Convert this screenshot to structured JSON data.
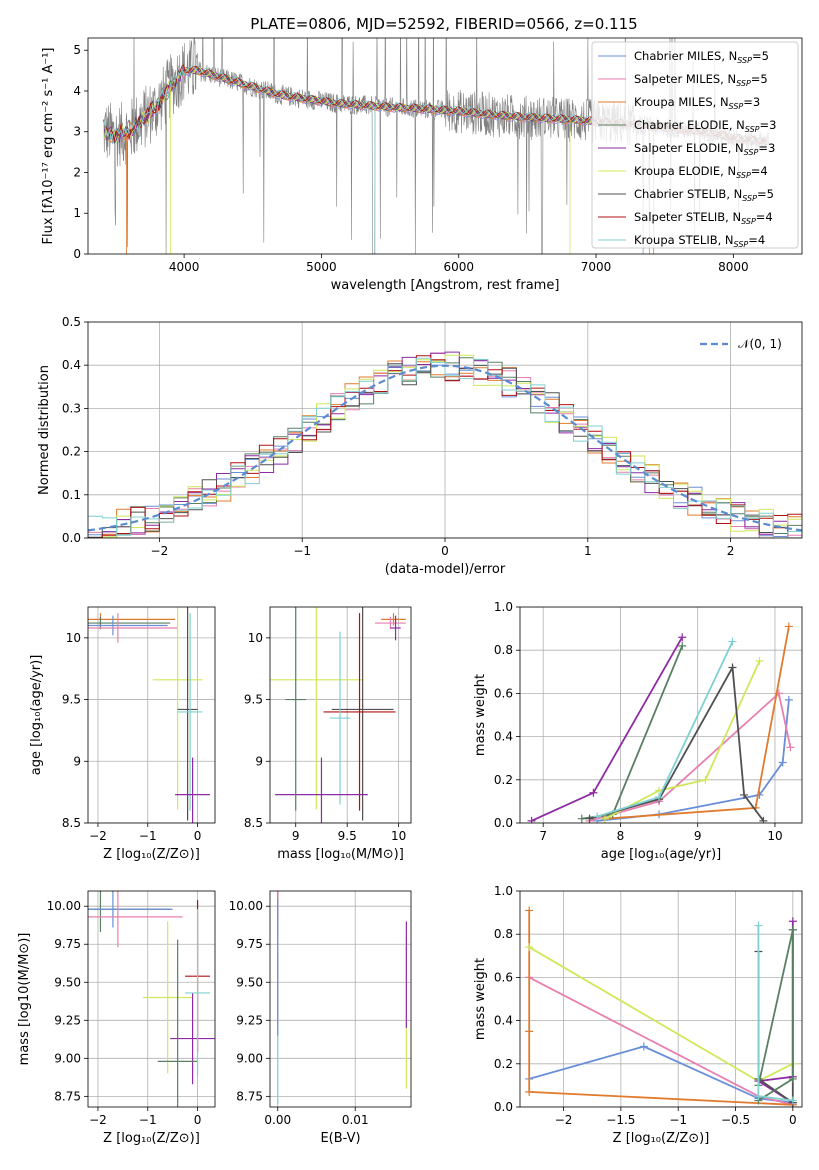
{
  "figure": {
    "title": "PLATE=0806, MJD=52592, FIBERID=0566, z=0.115"
  },
  "colors": {
    "C1": "#6a8fd6",
    "C2": "#e87fae",
    "C3": "#e07b2d",
    "C4": "#5a7f62",
    "C5": "#8f2aa5",
    "C6": "#cfe85a",
    "C7": "#505050",
    "C8": "#b01010",
    "C9": "#7fd0d0",
    "spec": "#808080"
  },
  "chart_data": [
    {
      "id": "spectrum",
      "type": "line",
      "xlabel": "wavelength [Angstrom, rest frame]",
      "ylabel": "Flux [f_λ10^−17 erg cm^−2 s^−1 A^−1]",
      "xlim": [
        3300,
        8500
      ],
      "ylim": [
        0,
        5.3
      ],
      "xticks": [
        4000,
        5000,
        6000,
        7000,
        8000
      ],
      "yticks": [
        0,
        1,
        2,
        3,
        4,
        5
      ],
      "legend_position": "upper right",
      "series": [
        {
          "name": "Chabrier MILES, N_SSP=5",
          "color": "#6a8fd6"
        },
        {
          "name": "Salpeter MILES, N_SSP=5",
          "color": "#e87fae"
        },
        {
          "name": "Kroupa MILES, N_SSP=3",
          "color": "#e07b2d"
        },
        {
          "name": "Chabrier ELODIE, N_SSP=3",
          "color": "#5a7f62"
        },
        {
          "name": "Salpeter ELODIE, N_SSP=3",
          "color": "#8f2aa5"
        },
        {
          "name": "Kroupa ELODIE, N_SSP=4",
          "color": "#cfe85a"
        },
        {
          "name": "Chabrier STELIB, N_SSP=5",
          "color": "#505050"
        },
        {
          "name": "Salpeter STELIB, N_SSP=4",
          "color": "#b01010"
        },
        {
          "name": "Kroupa STELIB, N_SSP=4",
          "color": "#7fd0d0"
        }
      ],
      "continuum": {
        "x": [
          3400,
          3500,
          3600,
          3700,
          3800,
          3900,
          4000,
          4100,
          4200,
          4300,
          4500,
          4700,
          4900,
          5100,
          5300,
          5500,
          5800,
          6000,
          6300,
          6500,
          6800,
          7000,
          7200,
          7500,
          7800,
          8000,
          8250
        ],
        "y": [
          3.05,
          2.9,
          3.0,
          3.3,
          3.6,
          4.1,
          4.5,
          4.5,
          4.4,
          4.3,
          4.1,
          3.9,
          3.8,
          3.7,
          3.65,
          3.6,
          3.55,
          3.5,
          3.4,
          3.35,
          3.3,
          3.25,
          3.2,
          3.1,
          3.0,
          2.85,
          2.75
        ]
      }
    },
    {
      "id": "residuals",
      "type": "histogram",
      "xlabel": "(data-model)/error",
      "ylabel": "Normed distribution",
      "xlim": [
        -2.5,
        2.5
      ],
      "ylim": [
        0,
        0.5
      ],
      "xticks": [
        -2,
        -1,
        0,
        1,
        2
      ],
      "yticks": [
        0.0,
        0.1,
        0.2,
        0.3,
        0.4,
        0.5
      ],
      "legend_position": "upper right",
      "reference": {
        "name": "𝒩(0, 1)",
        "color": "#5b8bd0"
      },
      "bin_width": 0.1
    },
    {
      "id": "age-Z",
      "type": "errorbar",
      "xlabel": "Z [log10(Z/Z⊙)]",
      "ylabel": "age  [log10(age/yr)]",
      "xlim": [
        -2.2,
        0.35
      ],
      "ylim": [
        8.5,
        10.25
      ],
      "xticks": [
        -2,
        -1,
        0
      ],
      "yticks": [
        8.5,
        9.0,
        9.5,
        10.0
      ],
      "points": [
        {
          "x": -1.95,
          "xerr": 1.5,
          "y": 10.15,
          "yerr": 0.05,
          "c": "C3"
        },
        {
          "x": -1.95,
          "xerr": 1.4,
          "y": 10.12,
          "yerr": 0.05,
          "c": "C4"
        },
        {
          "x": -1.7,
          "xerr": 1.1,
          "y": 10.1,
          "yerr": 0.08,
          "c": "C1"
        },
        {
          "x": -1.6,
          "xerr": 1.2,
          "y": 10.08,
          "yerr": 0.12,
          "c": "C2"
        },
        {
          "x": -0.4,
          "xerr": 0.5,
          "y": 9.66,
          "yerr": 1.05,
          "c": "C6"
        },
        {
          "x": -0.2,
          "xerr": 0.2,
          "y": 9.42,
          "yerr": 0.9,
          "c": "C7"
        },
        {
          "x": -0.15,
          "xerr": 0.25,
          "y": 9.4,
          "yerr": 0.8,
          "c": "C9"
        },
        {
          "x": -0.1,
          "xerr": 0.35,
          "y": 8.73,
          "yerr": 0.3,
          "c": "C5"
        }
      ]
    },
    {
      "id": "age-mass",
      "type": "errorbar",
      "xlabel": "mass [log10(M/M⊙)]",
      "ylabel": "",
      "xlim": [
        8.75,
        10.12
      ],
      "ylim": [
        8.5,
        10.25
      ],
      "xticks": [
        9.0,
        9.5,
        10.0
      ],
      "yticks": [
        8.5,
        9.0,
        9.5,
        10.0
      ],
      "points": [
        {
          "x": 9.95,
          "xerr": 0.12,
          "y": 10.15,
          "yerr": 0.05,
          "c": "C3"
        },
        {
          "x": 9.92,
          "xerr": 0.15,
          "y": 10.12,
          "yerr": 0.05,
          "c": "C2"
        },
        {
          "x": 9.97,
          "xerr": 0.05,
          "y": 10.08,
          "yerr": 0.1,
          "c": "C5"
        },
        {
          "x": 9.2,
          "xerr": 0.45,
          "y": 9.66,
          "yerr": 1.05,
          "c": "C6"
        },
        {
          "x": 9.65,
          "xerr": 0.3,
          "y": 9.42,
          "yerr": 0.9,
          "c": "C7"
        },
        {
          "x": 9.62,
          "xerr": 0.35,
          "y": 9.4,
          "yerr": 0.8,
          "c": "C8"
        },
        {
          "x": 9.43,
          "xerr": 0.1,
          "y": 9.35,
          "yerr": 0.7,
          "c": "C9"
        },
        {
          "x": 9.25,
          "xerr": 0.45,
          "y": 8.73,
          "yerr": 0.3,
          "c": "C5"
        },
        {
          "x": 9.0,
          "xerr": 0.1,
          "y": 9.5,
          "yerr": 0.9,
          "c": "C4"
        }
      ]
    },
    {
      "id": "mw-age",
      "type": "line",
      "xlabel": "age  [log10(age/yr)]",
      "ylabel": "mass weight",
      "xlim": [
        6.7,
        10.35
      ],
      "ylim": [
        0,
        1.0
      ],
      "xticks": [
        7,
        8,
        9,
        10
      ],
      "yticks": [
        0.0,
        0.2,
        0.4,
        0.6,
        0.8,
        1.0
      ],
      "series": [
        {
          "c": "C1",
          "x": [
            7.7,
            8.5,
            9.8,
            10.1,
            10.18
          ],
          "y": [
            0.01,
            0.04,
            0.13,
            0.28,
            0.57
          ]
        },
        {
          "c": "C2",
          "x": [
            7.6,
            8.5,
            10.05,
            10.2
          ],
          "y": [
            0.01,
            0.1,
            0.6,
            0.35
          ]
        },
        {
          "c": "C3",
          "x": [
            7.8,
            9.75,
            10.18
          ],
          "y": [
            0.02,
            0.07,
            0.91
          ]
        },
        {
          "c": "C4",
          "x": [
            7.5,
            7.9,
            8.8
          ],
          "y": [
            0.02,
            0.04,
            0.82
          ]
        },
        {
          "c": "C5",
          "x": [
            6.85,
            7.65,
            8.8
          ],
          "y": [
            0.01,
            0.14,
            0.86
          ]
        },
        {
          "c": "C6",
          "x": [
            7.8,
            8.5,
            9.1,
            9.8
          ],
          "y": [
            0.02,
            0.15,
            0.2,
            0.75
          ]
        },
        {
          "c": "C7",
          "x": [
            7.6,
            8.5,
            9.45,
            9.6,
            9.85
          ],
          "y": [
            0.02,
            0.11,
            0.72,
            0.13,
            0.01
          ]
        },
        {
          "c": "C9",
          "x": [
            7.7,
            8.5,
            9.45
          ],
          "y": [
            0.03,
            0.12,
            0.84
          ]
        }
      ]
    },
    {
      "id": "mass-Z",
      "type": "errorbar",
      "xlabel": "Z [log10(Z/Z⊙)]",
      "ylabel": "mass [log10(M/M⊙)]",
      "xlim": [
        -2.2,
        0.35
      ],
      "ylim": [
        8.68,
        10.1
      ],
      "xticks": [
        -2,
        -1,
        0
      ],
      "yticks": [
        8.75,
        9.0,
        9.25,
        9.5,
        9.75,
        10.0
      ],
      "points": [
        {
          "x": -1.95,
          "xerr": 1.4,
          "y": 9.98,
          "yerr": 0.15,
          "c": "C4"
        },
        {
          "x": -1.7,
          "xerr": 1.2,
          "y": 9.98,
          "yerr": 0.12,
          "c": "C1"
        },
        {
          "x": -1.6,
          "xerr": 1.3,
          "y": 9.93,
          "yerr": 0.2,
          "c": "C2"
        },
        {
          "x": -0.6,
          "xerr": 0.5,
          "y": 9.4,
          "yerr": 0.5,
          "c": "C6"
        },
        {
          "x": -0.1,
          "xerr": 0.45,
          "y": 9.13,
          "yerr": 0.3,
          "c": "C5"
        },
        {
          "x": -0.4,
          "xerr": 0.4,
          "y": 8.98,
          "yerr": 0.8,
          "c": "C4"
        },
        {
          "x": 0.0,
          "xerr": 0.25,
          "y": 9.54,
          "yerr": 0.5,
          "c": "C8"
        },
        {
          "x": 0.0,
          "xerr": 0.25,
          "y": 9.43,
          "yerr": 0.55,
          "c": "C9"
        }
      ]
    },
    {
      "id": "mass-EBV",
      "type": "errorbar",
      "xlabel": "E(B-V)",
      "ylabel": "",
      "xlim": [
        -0.001,
        0.0172
      ],
      "ylim": [
        8.68,
        10.1
      ],
      "xticks": [
        0.0,
        0.01
      ],
      "yticks": [
        8.75,
        9.0,
        9.25,
        9.5,
        9.75,
        10.0
      ],
      "points": [
        {
          "x": 0.0,
          "xerr": 0.0,
          "y": 9.95,
          "yerr": 0.15,
          "c": "C8"
        },
        {
          "x": 0.0,
          "xerr": 0.0,
          "y": 9.7,
          "yerr": 0.5,
          "c": "C2"
        },
        {
          "x": 0.0,
          "xerr": 0.0,
          "y": 9.3,
          "yerr": 0.6,
          "c": "C9"
        },
        {
          "x": 0.0,
          "xerr": 0.0,
          "y": 9.6,
          "yerr": 0.45,
          "c": "C1"
        },
        {
          "x": 0.0166,
          "xerr": 0.0,
          "y": 9.3,
          "yerr": 0.5,
          "c": "C6"
        },
        {
          "x": 0.0166,
          "xerr": 0.0,
          "y": 9.55,
          "yerr": 0.35,
          "c": "C5"
        }
      ]
    },
    {
      "id": "mw-Z",
      "type": "line",
      "xlabel": "Z [log10(Z/Z⊙)]",
      "ylabel": "mass weight",
      "xlim": [
        -2.38,
        0.08
      ],
      "ylim": [
        0,
        1.0
      ],
      "xticks": [
        -2.0,
        -1.5,
        -1.0,
        -0.5,
        0.0
      ],
      "yticks": [
        0.0,
        0.2,
        0.4,
        0.6,
        0.8,
        1.0
      ],
      "series": [
        {
          "c": "C1",
          "x": [
            -2.3,
            -1.3,
            -0.3,
            0.0
          ],
          "y": [
            0.13,
            0.28,
            0.04,
            0.02
          ]
        },
        {
          "c": "C2",
          "x": [
            -2.3,
            -0.3,
            0.0
          ],
          "y": [
            0.6,
            0.05,
            0.01
          ]
        },
        {
          "c": "C3",
          "x": [
            -2.3,
            -2.3,
            -2.3,
            0.0
          ],
          "y": [
            0.91,
            0.35,
            0.07,
            0.01
          ]
        },
        {
          "c": "C6",
          "x": [
            -2.3,
            -0.3,
            0.0
          ],
          "y": [
            0.74,
            0.12,
            0.2
          ]
        },
        {
          "c": "C5",
          "x": [
            0.0,
            0.0,
            -0.3,
            0.0
          ],
          "y": [
            0.86,
            0.14,
            0.12,
            0.02
          ]
        },
        {
          "c": "C7",
          "x": [
            -0.3,
            -0.3,
            0.0,
            0.0
          ],
          "y": [
            0.72,
            0.13,
            0.02,
            0.82
          ]
        },
        {
          "c": "C4",
          "x": [
            -0.3,
            0.0,
            0.0,
            -0.3
          ],
          "y": [
            0.03,
            0.13,
            0.82,
            0.1
          ]
        },
        {
          "c": "C9",
          "x": [
            -0.3,
            -0.3,
            0.0
          ],
          "y": [
            0.84,
            0.05,
            0.03
          ]
        }
      ]
    }
  ]
}
